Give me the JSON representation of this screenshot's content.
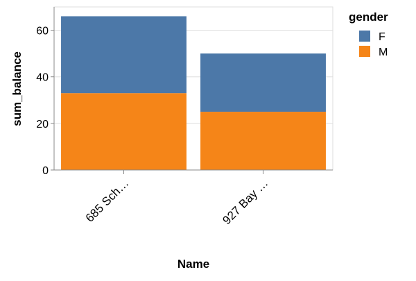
{
  "chart_data": {
    "type": "bar",
    "stacked": true,
    "categories": [
      "685 Sch…",
      "927 Bay …"
    ],
    "series": [
      {
        "name": "F",
        "color": "#4c78a8",
        "values": [
          33,
          25
        ]
      },
      {
        "name": "M",
        "color": "#f58518",
        "values": [
          33,
          25
        ]
      }
    ],
    "stack_order_bottom_to_top": [
      "M",
      "F"
    ],
    "xlabel": "Name",
    "ylabel": "sum_balance",
    "ylim": [
      0,
      70
    ],
    "yticks": [
      0,
      20,
      40,
      60
    ],
    "grid": true,
    "legend": {
      "title": "gender",
      "position": "top-right"
    }
  }
}
